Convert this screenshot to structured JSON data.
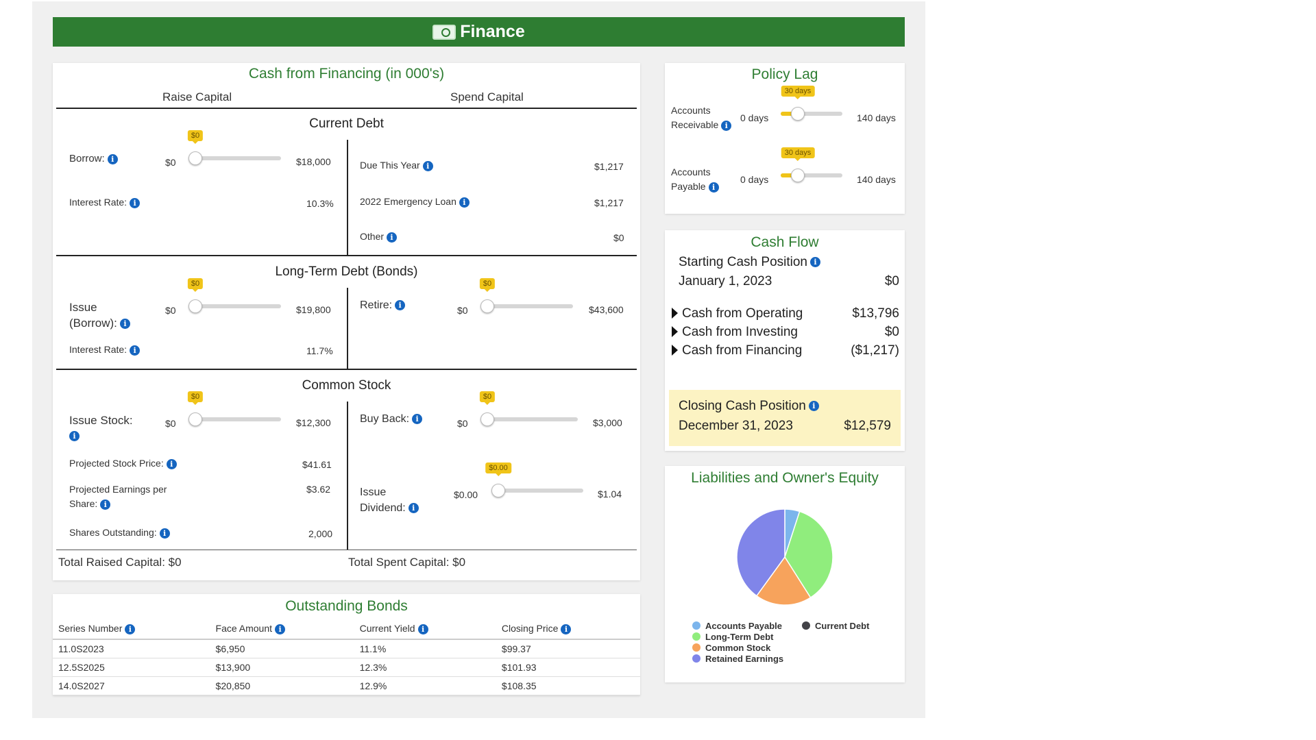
{
  "header": {
    "title": "Finance"
  },
  "financing": {
    "title": "Cash from Financing (in 000's)",
    "raise_header": "Raise Capital",
    "spend_header": "Spend Capital",
    "current_debt": {
      "heading": "Current Debt",
      "borrow_label": "Borrow:",
      "borrow_min": "$0",
      "borrow_max": "$18,000",
      "borrow_value": "$0",
      "borrow_fraction": 0,
      "interest_label": "Interest Rate:",
      "interest_value": "10.3%",
      "due_label": "Due This Year",
      "due_value": "$1,217",
      "emergency_label": "2022 Emergency Loan",
      "emergency_value": "$1,217",
      "other_label": "Other",
      "other_value": "$0"
    },
    "bonds": {
      "heading": "Long-Term Debt (Bonds)",
      "issue_label_1": "Issue",
      "issue_label_2": "(Borrow):",
      "issue_min": "$0",
      "issue_max": "$19,800",
      "issue_value": "$0",
      "issue_fraction": 0,
      "interest_label": "Interest Rate:",
      "interest_value": "11.7%",
      "retire_label": "Retire:",
      "retire_min": "$0",
      "retire_max": "$43,600",
      "retire_value": "$0",
      "retire_fraction": 0
    },
    "stock": {
      "heading": "Common Stock",
      "issue_label": "Issue Stock:",
      "issue_min": "$0",
      "issue_max": "$12,300",
      "issue_value": "$0",
      "issue_fraction": 0,
      "price_label": "Projected Stock Price:",
      "price_value": "$41.61",
      "eps_label_1": "Projected Earnings per",
      "eps_label_2": "Share:",
      "eps_value": "$3.62",
      "shares_label": "Shares Outstanding:",
      "shares_value": "2,000",
      "buyback_label": "Buy Back:",
      "buyback_min": "$0",
      "buyback_max": "$3,000",
      "buyback_value": "$0",
      "buyback_fraction": 0,
      "dividend_label_1": "Issue",
      "dividend_label_2": "Dividend:",
      "dividend_min": "$0.00",
      "dividend_max": "$1.04",
      "dividend_value": "$0.00",
      "dividend_fraction": 0
    },
    "total_raised": "Total Raised Capital: $0",
    "total_spent": "Total Spent Capital: $0"
  },
  "outstanding_bonds": {
    "title": "Outstanding Bonds",
    "columns": [
      "Series Number",
      "Face Amount",
      "Current Yield",
      "Closing Price"
    ],
    "rows": [
      [
        "11.0S2023",
        "$6,950",
        "11.1%",
        "$99.37"
      ],
      [
        "12.5S2025",
        "$13,900",
        "12.3%",
        "$101.93"
      ],
      [
        "14.0S2027",
        "$20,850",
        "12.9%",
        "$108.35"
      ]
    ]
  },
  "policy_lag": {
    "title": "Policy Lag",
    "ar_label_1": "Accounts",
    "ar_label_2": "Receivable",
    "ar_min": "0 days",
    "ar_max": "140 days",
    "ar_value": "30 days",
    "ar_fraction": 0.214,
    "ap_label_1": "Accounts",
    "ap_label_2": "Payable",
    "ap_min": "0 days",
    "ap_max": "140 days",
    "ap_value": "30 days",
    "ap_fraction": 0.214
  },
  "cash_flow": {
    "title": "Cash Flow",
    "start_label": "Starting Cash Position",
    "start_date": "January 1, 2023",
    "start_value": "$0",
    "operating_label": "Cash from Operating",
    "operating_value": "$13,796",
    "investing_label": "Cash from Investing",
    "investing_value": "$0",
    "financing_label": "Cash from Financing",
    "financing_value": "($1,217)",
    "closing_label": "Closing Cash Position",
    "closing_date": "December 31, 2023",
    "closing_value": "$12,579"
  },
  "liabilities": {
    "title": "Liabilities and Owner's Equity"
  },
  "chart_data": {
    "type": "pie",
    "title": "Liabilities and Owner's Equity",
    "categories": [
      "Accounts Payable",
      "Current Debt",
      "Long-Term Debt",
      "Common Stock",
      "Retained Earnings"
    ],
    "values": [
      5,
      0,
      36,
      19,
      40
    ],
    "colors": [
      "#7cb5ec",
      "#434348",
      "#90ed7d",
      "#f7a35c",
      "#8085e9"
    ],
    "legend": "bottom"
  },
  "icons": {
    "info": "info-icon",
    "money": "money-icon",
    "expand": "triangle-right-icon"
  }
}
